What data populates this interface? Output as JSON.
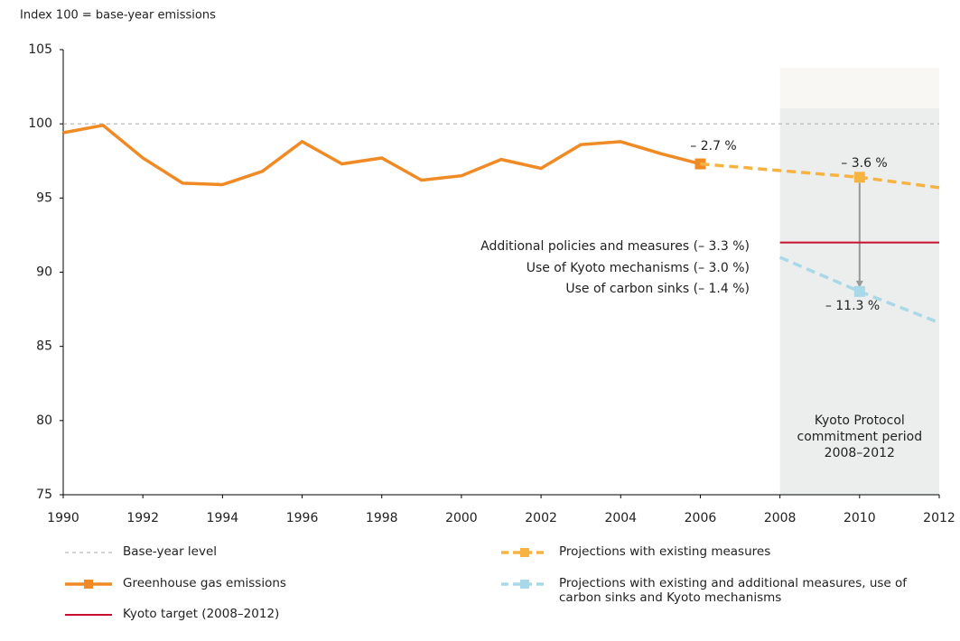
{
  "chart_data": {
    "type": "line",
    "y_label": "Index 100 = base-year emissions",
    "xlim": [
      1990,
      2012
    ],
    "xticks": [
      1990,
      1992,
      1994,
      1996,
      1998,
      2000,
      2002,
      2004,
      2006,
      2008,
      2010,
      2012
    ],
    "ylim": [
      75,
      105
    ],
    "yticks": [
      75,
      80,
      85,
      90,
      95,
      100,
      105
    ],
    "shaded_span": [
      2008,
      2012
    ],
    "series": [
      {
        "name": "Base-year level",
        "color": "#aaaaaa",
        "dash": true,
        "width": 1,
        "x": [
          1990,
          2012
        ],
        "values": [
          100,
          100
        ]
      },
      {
        "name": "Greenhouse gas emissions",
        "color": "#f08a24",
        "dash": false,
        "width": 3.5,
        "x": [
          1990,
          1991,
          1992,
          1993,
          1994,
          1995,
          1996,
          1997,
          1998,
          1999,
          2000,
          2001,
          2002,
          2003,
          2004,
          2005,
          2006
        ],
        "values": [
          99.4,
          99.9,
          97.7,
          96.0,
          95.9,
          96.8,
          98.8,
          97.3,
          97.7,
          96.2,
          96.5,
          97.6,
          97.0,
          98.6,
          98.8,
          98.0,
          97.3
        ],
        "marker_x": [
          2006
        ]
      },
      {
        "name": "Kyoto target (2008–2012)",
        "color": "#c8102e",
        "dash": false,
        "width": 2,
        "x": [
          2008,
          2012
        ],
        "values": [
          92.0,
          92.0
        ]
      },
      {
        "name": "Projections with existing measures",
        "color": "#f7b342",
        "dash": true,
        "width": 3.5,
        "x": [
          2006,
          2010,
          2012
        ],
        "values": [
          97.3,
          96.4,
          95.7
        ],
        "marker_x": [
          2010
        ]
      },
      {
        "name": "Projections with existing and additional measures, use of carbon sinks and Kyoto mechanisms",
        "color": "#a9d8e8",
        "dash": true,
        "width": 3.5,
        "x": [
          2008,
          2010,
          2012
        ],
        "values": [
          91.0,
          88.7,
          86.6
        ],
        "marker_x": [
          2010
        ]
      }
    ],
    "annotations": [
      "– 2.7 %",
      "– 3.6 %",
      "– 11.3 %",
      "Additional policies and measures (– 3.3 %)",
      "Use of Kyoto mechanisms (– 3.0 %)",
      "Use of carbon sinks (– 1.4 %)"
    ],
    "period_label": [
      "Kyoto Protocol",
      "commitment period",
      "2008–2012"
    ]
  }
}
